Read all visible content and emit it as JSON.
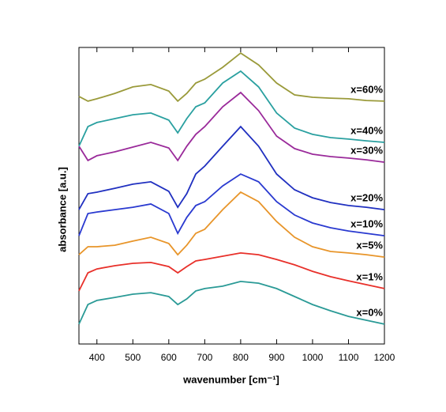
{
  "chart_data": {
    "type": "line",
    "xlabel": "wavenumber [cm⁻¹]",
    "ylabel": "absorbance [a.u.]",
    "x": [
      350,
      375,
      400,
      450,
      500,
      550,
      600,
      625,
      650,
      675,
      700,
      750,
      800,
      850,
      900,
      950,
      1000,
      1050,
      1100,
      1150,
      1200
    ],
    "xlim": [
      350,
      1200
    ],
    "xticks": [
      400,
      500,
      600,
      700,
      800,
      900,
      1000,
      1100,
      1200
    ],
    "ylim": [
      0,
      100
    ],
    "series": [
      {
        "name": "x=0%",
        "color": "#2a9a96",
        "values": [
          6.7,
          13.3,
          14.7,
          15.7,
          16.8,
          17.3,
          16,
          13.3,
          15.2,
          17.9,
          18.7,
          19.5,
          21.1,
          20.5,
          18.7,
          16,
          13.3,
          11.2,
          9.3,
          8,
          6.7
        ]
      },
      {
        "name": "x=1%",
        "color": "#e8302a",
        "values": [
          17.9,
          24,
          25.3,
          26.4,
          27.2,
          27.5,
          26.1,
          24,
          26.1,
          28,
          28.5,
          29.6,
          30.7,
          30.1,
          28.5,
          26.7,
          24.5,
          22.7,
          21.3,
          20,
          18.7
        ]
      },
      {
        "name": "x=5%",
        "color": "#e8952a",
        "values": [
          30.1,
          32.8,
          32.8,
          33.3,
          34.7,
          36,
          33.9,
          30.1,
          33.3,
          37.3,
          38.7,
          45.3,
          51.2,
          48,
          41.3,
          36,
          32.8,
          31.2,
          30.7,
          30.1,
          29.3
        ]
      },
      {
        "name": "x=10%",
        "color": "#2a3ad0",
        "values": [
          36.5,
          44,
          44.5,
          45.3,
          46.1,
          47.2,
          44,
          37.3,
          42.7,
          46.7,
          48,
          53.3,
          57.3,
          54.7,
          48,
          43.5,
          40.8,
          39.2,
          38.1,
          37.3,
          36.5
        ]
      },
      {
        "name": "x=20%",
        "color": "#2030c0",
        "values": [
          45.3,
          50.7,
          51.2,
          52.5,
          53.9,
          54.7,
          51.5,
          46.1,
          50.7,
          57.3,
          60,
          66.7,
          73.3,
          66.7,
          57.3,
          52,
          49.3,
          47.7,
          46.7,
          46.1,
          45.3
        ]
      },
      {
        "name": "x=30%",
        "color": "#9a2a9a",
        "values": [
          66.7,
          61.9,
          63.5,
          64.8,
          66.4,
          68,
          66.1,
          61.9,
          66.7,
          70.7,
          73.3,
          80,
          84.8,
          78.7,
          70.1,
          65.9,
          64,
          63.2,
          62.7,
          62.1,
          61.3
        ]
      },
      {
        "name": "x=40%",
        "color": "#2aa0a0",
        "values": [
          66.7,
          73.3,
          74.7,
          76,
          77.3,
          77.9,
          75.5,
          71.2,
          76,
          80,
          81.3,
          88,
          92,
          86.7,
          77.9,
          72.8,
          70.7,
          69.6,
          69.1,
          68.5,
          68
        ]
      },
      {
        "name": "x=60%",
        "color": "#9a9a3a",
        "values": [
          83.5,
          81.9,
          82.7,
          84.5,
          86.7,
          87.5,
          85.3,
          81.9,
          84.5,
          88,
          89.3,
          93.3,
          98.1,
          94.1,
          88,
          84,
          83.2,
          82.9,
          82.7,
          82.1,
          81.9
        ]
      }
    ]
  }
}
